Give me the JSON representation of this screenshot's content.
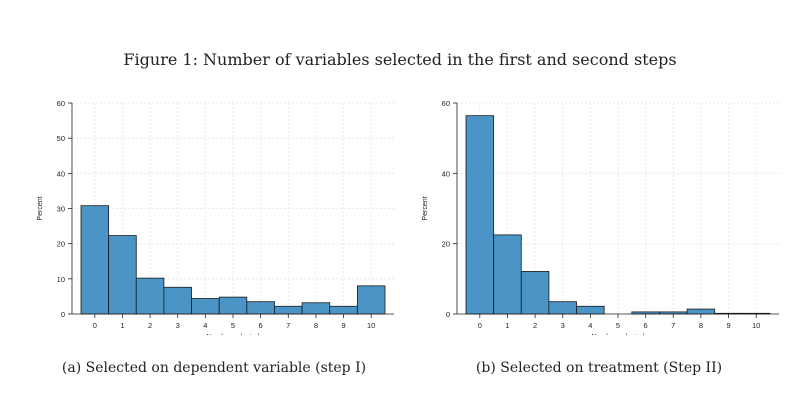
{
  "figure": {
    "title": "Figure 1: Number of variables selected in the first and second steps"
  },
  "chart_data": [
    {
      "type": "bar",
      "caption": "(a) Selected on dependent variable (step I)",
      "categories": [
        "0",
        "1",
        "2",
        "3",
        "4",
        "5",
        "6",
        "7",
        "8",
        "9",
        "10"
      ],
      "values": [
        30.8,
        22.3,
        10.2,
        7.6,
        4.4,
        4.8,
        3.5,
        2.2,
        3.2,
        2.2,
        8.0
      ],
      "xlabel": "Number selected",
      "ylabel": "Percent",
      "ylim": [
        0,
        60
      ],
      "yticks": [
        0,
        10,
        20,
        30,
        40,
        50,
        60
      ],
      "grid": true,
      "color": "#4b94c6"
    },
    {
      "type": "bar",
      "caption": "(b) Selected on treatment (Step II)",
      "categories": [
        "0",
        "1",
        "2",
        "3",
        "4",
        "5",
        "6",
        "7",
        "8",
        "9",
        "10"
      ],
      "values": [
        56.4,
        22.5,
        12.1,
        3.5,
        2.2,
        0,
        0.6,
        0.6,
        1.4,
        0.2,
        0.2
      ],
      "xlabel": "Number selected",
      "ylabel": "Percent",
      "ylim": [
        0,
        60
      ],
      "yticks": [
        0,
        20,
        40,
        60
      ],
      "grid": true,
      "color": "#4b94c6"
    }
  ]
}
